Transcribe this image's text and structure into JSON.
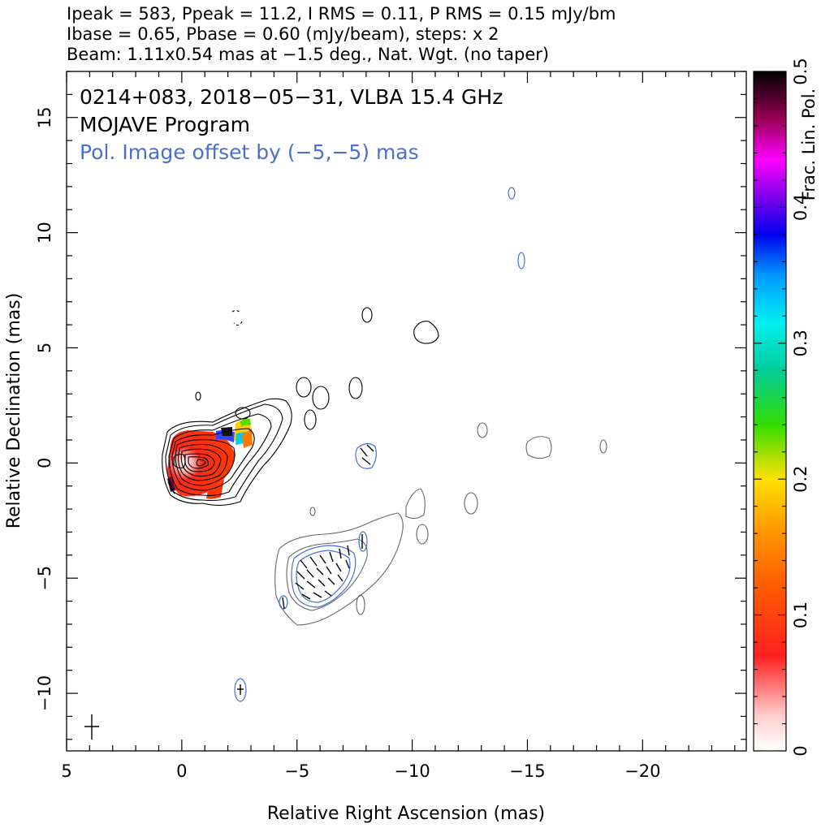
{
  "chart_data": {
    "type": "contour",
    "header": [
      "Ipeak = 583, Ppeak = 11.2, I RMS = 0.11, P RMS = 0.15 mJy/bm",
      "Ibase = 0.65, Pbase = 0.60 (mJy/beam), steps: x 2",
      "Beam: 1.11x0.54 mas at −1.5 deg., Nat. Wgt. (no taper)"
    ],
    "annotations": [
      {
        "text": "0214+083, 2018−05−31, VLBA 15.4 GHz",
        "color": "#000000"
      },
      {
        "text": "MOJAVE Program",
        "color": "#000000"
      },
      {
        "text": "Pol. Image offset by (−5,−5) mas",
        "color": "#4a6fd1"
      }
    ],
    "xlabel": "Relative Right Ascension (mas)",
    "ylabel": "Relative Declination (mas)",
    "xlim": [
      5,
      -24.5
    ],
    "ylim": [
      -12.5,
      17
    ],
    "x_ticks": [
      "5",
      "0",
      "−5",
      "−10",
      "−15",
      "−20"
    ],
    "y_ticks": [
      "−10",
      "−5",
      "0",
      "5",
      "10",
      "15"
    ],
    "colorbar": {
      "label": "Frac. Lin. Pol.",
      "range": [
        0,
        0.5
      ],
      "ticks": [
        "0",
        "0.1",
        "0.2",
        "0.3",
        "0.4",
        "0.5"
      ]
    },
    "beam": {
      "major_mas": 1.11,
      "minor_mas": 0.54,
      "pa_deg": -1.5
    },
    "colors": {
      "total_intensity": "#000000",
      "pol_contours": "#4a6fd1",
      "offset_image_contours": "#666666"
    }
  }
}
